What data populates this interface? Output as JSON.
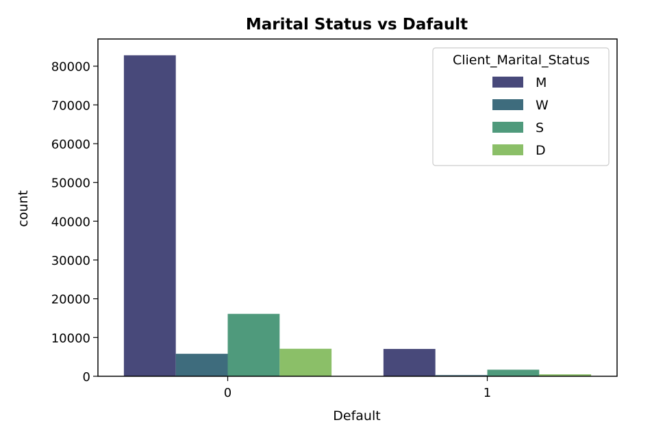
{
  "chart_data": {
    "type": "bar",
    "title": "Marital Status vs Dafault",
    "xlabel": "Default",
    "ylabel": "count",
    "categories": [
      "0",
      "1"
    ],
    "ylim": [
      0,
      87000
    ],
    "yticks": [
      0,
      10000,
      20000,
      30000,
      40000,
      50000,
      60000,
      70000,
      80000
    ],
    "ytick_labels": [
      "0",
      "10000",
      "20000",
      "30000",
      "40000",
      "50000",
      "60000",
      "70000",
      "80000"
    ],
    "legend": {
      "title": "Client_Marital_Status",
      "position": "top-right"
    },
    "series": [
      {
        "name": "M",
        "color": "#48497a",
        "values": [
          82800,
          7050
        ]
      },
      {
        "name": "W",
        "color": "#3e6c7d",
        "values": [
          5800,
          300
        ]
      },
      {
        "name": "S",
        "color": "#4f9a7c",
        "values": [
          16100,
          1700
        ]
      },
      {
        "name": "D",
        "color": "#8bbf68",
        "values": [
          7100,
          500
        ]
      }
    ]
  }
}
